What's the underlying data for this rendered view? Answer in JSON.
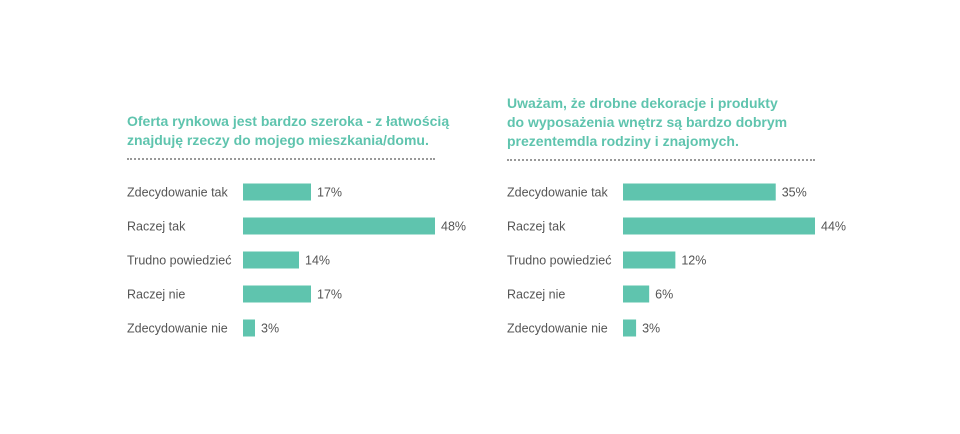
{
  "colors": {
    "accent": "#5fc4ae",
    "text": "#555555",
    "divider": "#999999"
  },
  "chart_data": [
    {
      "type": "bar",
      "orientation": "horizontal",
      "title": "Oferta rynkowa jest bardzo szeroka - z łatwością znajduję rzeczy do mojego mieszkania/domu.",
      "title_lines": [
        "Oferta rynkowa jest bardzo szeroka - z łatwością",
        "znajduję rzeczy do mojego mieszkania/domu."
      ],
      "categories": [
        "Zdecydowanie tak",
        "Raczej tak",
        "Trudno powiedzieć",
        "Raczej nie",
        "Zdecydowanie nie"
      ],
      "values": [
        17,
        48,
        14,
        17,
        3
      ],
      "value_labels": [
        "17%",
        "48%",
        "14%",
        "17%",
        "3%"
      ],
      "unit": "%",
      "xlim": [
        0,
        48
      ],
      "grid": false
    },
    {
      "type": "bar",
      "orientation": "horizontal",
      "title": "Uważam, że drobne dekoracje i produkty do wyposażenia wnętrz są bardzo dobrym prezentemdla rodziny i znajomych.",
      "title_lines": [
        "Uważam, że drobne dekoracje i produkty",
        "do wyposażenia wnętrz są bardzo dobrym",
        "prezentemdla rodziny i znajomych."
      ],
      "categories": [
        "Zdecydowanie tak",
        "Raczej tak",
        "Trudno powiedzieć",
        "Raczej nie",
        "Zdecydowanie nie"
      ],
      "values": [
        35,
        44,
        12,
        6,
        3
      ],
      "value_labels": [
        "35%",
        "44%",
        "12%",
        "6%",
        "3%"
      ],
      "unit": "%",
      "xlim": [
        0,
        44
      ],
      "grid": false
    }
  ]
}
